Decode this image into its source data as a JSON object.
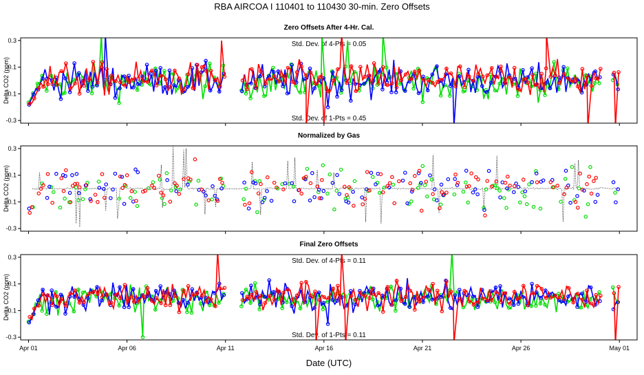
{
  "chart_data": {
    "type": "scatter",
    "title": "RBA   AIRCOA I   110401 to 110430   30-min. Zero Offsets",
    "xlabel": "Date (UTC)",
    "x_tick_labels": [
      "Apr 01",
      "Apr 06",
      "Apr 11",
      "Apr 16",
      "Apr 21",
      "Apr 26",
      "May 01"
    ],
    "x_tick_days": [
      0,
      5,
      10,
      15,
      20,
      25,
      30
    ],
    "xlim_days": [
      -0.4,
      30.9
    ],
    "series_colors": {
      "blue": "#0000ff",
      "green": "#00dd00",
      "red": "#ff0000",
      "black": "#000000"
    },
    "panels": [
      {
        "title": "Zero Offsets After 4-Hr. Cal.",
        "ylabel": "Delta CO2 (ppm)",
        "ylim": [
          -0.32,
          0.32
        ],
        "y_ticks": [
          -0.3,
          -0.1,
          0.1,
          0.3
        ],
        "y_tick_labels": [
          "-0.3",
          "-0.1",
          "0.1",
          "0.3"
        ],
        "annotation_top": "Std. Dev. of 4-Pts = 0.05",
        "annotation_bottom": "Std. Dev. of 1-Pts = 0.45",
        "style": "lines",
        "spread": 0.06,
        "offset": 0.0,
        "spikes": [
          {
            "series": "green",
            "day": 3.7,
            "value": 0.35
          },
          {
            "series": "blue",
            "day": 3.9,
            "value": 0.35
          },
          {
            "series": "red",
            "day": 9.8,
            "value": 0.3
          },
          {
            "series": "red",
            "day": 10.2,
            "value": -0.35
          },
          {
            "series": "green",
            "day": 10.35,
            "value": 0.35
          },
          {
            "series": "blue",
            "day": 10.45,
            "value": -0.35
          },
          {
            "series": "red",
            "day": 10.7,
            "value": 0.35
          },
          {
            "series": "red",
            "day": 14.1,
            "value": -0.35
          },
          {
            "series": "green",
            "day": 14.9,
            "value": 0.35
          },
          {
            "series": "red",
            "day": 15.0,
            "value": -0.33
          },
          {
            "series": "blue",
            "day": 15.2,
            "value": -0.2
          },
          {
            "series": "red",
            "day": 15.9,
            "value": 0.35
          },
          {
            "series": "green",
            "day": 16.2,
            "value": 0.3
          },
          {
            "series": "green",
            "day": 18.0,
            "value": 0.35
          },
          {
            "series": "blue",
            "day": 21.6,
            "value": -0.35
          },
          {
            "series": "red",
            "day": 26.3,
            "value": 0.35
          },
          {
            "series": "red",
            "day": 28.4,
            "value": -0.35
          },
          {
            "series": "red",
            "day": 29.8,
            "value": -0.35
          }
        ]
      },
      {
        "title": "Normalized by Gas",
        "ylabel": "Delta CO2 (ppm)",
        "ylim": [
          -0.32,
          0.32
        ],
        "y_ticks": [
          -0.3,
          -0.1,
          0.1,
          0.3
        ],
        "y_tick_labels": [
          "-0.3",
          "-0.1",
          "0.1",
          "0.3"
        ],
        "annotation_top": "",
        "annotation_bottom": "",
        "style": "points",
        "spread": 0.08,
        "offset": 0.0,
        "reference_value": 0.0,
        "spikes": []
      },
      {
        "title": "Final Zero Offsets",
        "ylabel": "Delta CO2 (ppm)",
        "ylim": [
          -0.32,
          0.32
        ],
        "y_ticks": [
          -0.3,
          -0.1,
          0.1,
          0.3
        ],
        "y_tick_labels": [
          "-0.3",
          "-0.1",
          "0.1",
          "0.3"
        ],
        "annotation_top": "Std. Dev. of 4-Pts = 0.11",
        "annotation_bottom": "Std. Dev. of 1-Pts = 0.11",
        "style": "lines",
        "spread": 0.05,
        "offset": 0.0,
        "spikes": [
          {
            "series": "red",
            "day": 9.6,
            "value": 0.35
          },
          {
            "series": "red",
            "day": 10.1,
            "value": -0.35
          },
          {
            "series": "green",
            "day": 5.8,
            "value": -0.3
          },
          {
            "series": "red",
            "day": 14.6,
            "value": -0.35
          },
          {
            "series": "blue",
            "day": 15.2,
            "value": -0.2
          },
          {
            "series": "red",
            "day": 15.9,
            "value": 0.35
          },
          {
            "series": "red",
            "day": 16.1,
            "value": -0.35
          },
          {
            "series": "green",
            "day": 21.5,
            "value": 0.35
          },
          {
            "series": "red",
            "day": 21.6,
            "value": -0.35
          },
          {
            "series": "red",
            "day": 29.3,
            "value": 0.35
          },
          {
            "series": "blue",
            "day": 29.5,
            "value": 0.35
          },
          {
            "series": "red",
            "day": 29.8,
            "value": -0.35
          }
        ]
      }
    ]
  }
}
